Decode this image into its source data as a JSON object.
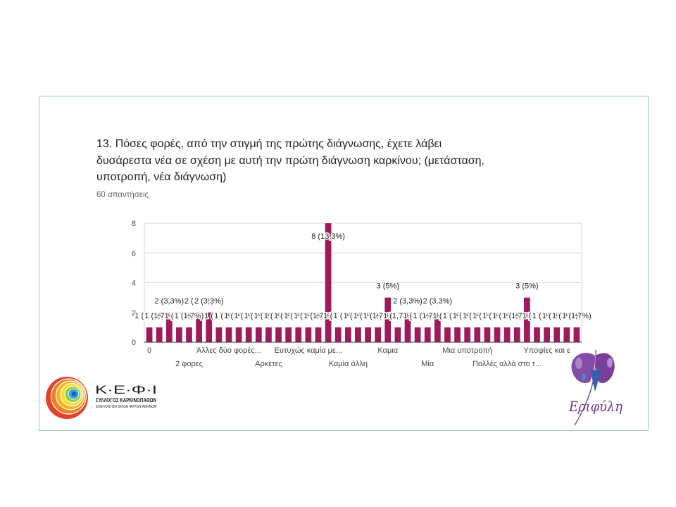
{
  "slide": {
    "frame_color": "#9dc0e5"
  },
  "chart_data": {
    "type": "bar",
    "title": "13. Πόσες φορές, από την στιγμή της πρώτης διάγνωσης, έχετε λάβει\nδυσάρεστα νέα σε σχέση με αυτή την πρώτη διάγνωση καρκίνου; (μετάσταση,\nυποτροπή, νέα διάγνωση)",
    "subtitle": "60 απαντήσεις",
    "ylim": [
      0,
      8
    ],
    "yticks": [
      0,
      2,
      4,
      6,
      8
    ],
    "grid": true,
    "legend": "none",
    "bar_color": "#9e1a5b",
    "categories": [
      "0",
      "",
      "",
      "",
      "2 φορες",
      "",
      "",
      "",
      "Άλλες δύο φορές...",
      "",
      "",
      "",
      "Αρκετες",
      "",
      "",
      "",
      "Ευτυχώς καμία με...",
      "",
      "",
      "",
      "Καμία άλλη",
      "",
      "",
      "",
      "Καμια",
      "",
      "",
      "",
      "Μία",
      "",
      "",
      "",
      "Μια υποτροπή",
      "",
      "",
      "",
      "Πολλές αλλά στο τ...",
      "",
      "",
      "",
      "Υποψίες και ε",
      "",
      "",
      ""
    ],
    "values": [
      1,
      1,
      2,
      1,
      1,
      2,
      2,
      1,
      1,
      1,
      1,
      1,
      1,
      1,
      1,
      1,
      1,
      1,
      8,
      1,
      1,
      1,
      1,
      1,
      3,
      1,
      2,
      1,
      1,
      2,
      1,
      1,
      1,
      1,
      1,
      1,
      1,
      1,
      3,
      1,
      1,
      1,
      1,
      1
    ],
    "data_labels": [
      "1 (1,7%)",
      "1 (1,7%)",
      "2 (3,3%)",
      "1 (1,7%)",
      "1 (1,7%)",
      "2 (3,3%)",
      "2 (3,3%)",
      "1 (1,7%)",
      "1 (1,7%)",
      "1 (1,7%)",
      "1 (1,7%)",
      "1 (1,7%)",
      "1 (1,7%)",
      "1 (1,7%)",
      "1 (1,7%)",
      "1 (1,7%)",
      "1 (1,7%)",
      "1 (1,7%)",
      "8 (13,3%)",
      "1 (1,7%)",
      "1 (1,7%)",
      "1 (1,7%)",
      "1 (1,7%)",
      "1 (1,7%)",
      "3 (5%)",
      "1 (1,7%)",
      "2 (3,3%)",
      "1 (1,7%)",
      "1 (1,7%)",
      "2 (3,3%)",
      "1 (1,7%)",
      "1 (1,7%)",
      "1 (1,7%)",
      "1 (1,7%)",
      "1 (1,7%)",
      "1 (1,7%)",
      "1 (1,7%)",
      "1 (1,7%)",
      "3 (5%)",
      "1 (1,7%)",
      "1 (1,7%)",
      "1 (1,7%)",
      "1 (1,7%)",
      "1 (1,7%)"
    ]
  },
  "logos": {
    "kefi": {
      "icon": "spiral-shell-icon",
      "name": "Κ·Ε·Φ·Ι",
      "line1": "ΣΥΛΛΟΓΟΣ ΚΑΡΚΙΝΟΠΑΘΩΝ",
      "line2": "ΕΘΕΛΟΝΤΩΝ ΦΙΛΩΝ ΙΑΤΡΩΝ ΑΘΗΝΩΝ"
    },
    "erifyli": {
      "icon": "butterfly-figure-icon",
      "name": "Εριφύλη",
      "color": "#6b3594"
    }
  }
}
